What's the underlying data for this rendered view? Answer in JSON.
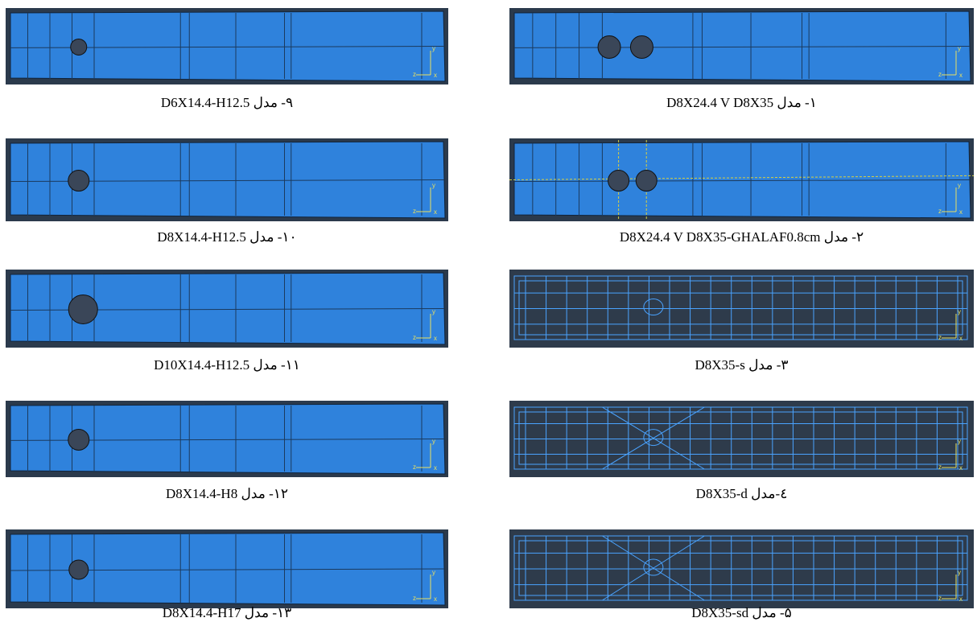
{
  "axis_labels": {
    "x": "x",
    "y": "y",
    "z": "z"
  },
  "left": [
    {
      "caption": "۹- مدل D6X14.4-H12.5"
    },
    {
      "caption": "۱۰- مدل D8X14.4-H12.5"
    },
    {
      "caption": "۱۱- مدل D10X14.4-H12.5"
    },
    {
      "caption": "۱۲- مدل D8X14.4-H8"
    },
    {
      "caption": "۱۳- مدل D8X14.4-H17"
    }
  ],
  "right": [
    {
      "caption": "۱- مدل D8X24.4 V D8X35"
    },
    {
      "caption": "۲- مدل D8X24.4 V D8X35-GHALAF0.8cm"
    },
    {
      "caption": "۳- مدل D8X35-s"
    },
    {
      "caption": "٤-مدل D8X35-d"
    },
    {
      "caption": "۵- مدل D8X35-sd"
    }
  ]
}
